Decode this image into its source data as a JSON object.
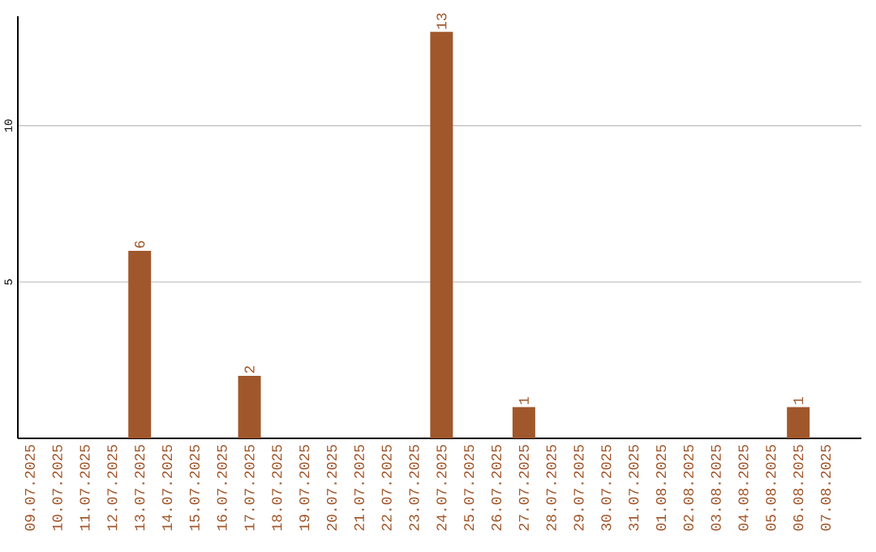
{
  "chart_data": {
    "type": "bar",
    "categories": [
      "09.07.2025",
      "10.07.2025",
      "11.07.2025",
      "12.07.2025",
      "13.07.2025",
      "14.07.2025",
      "15.07.2025",
      "16.07.2025",
      "17.07.2025",
      "18.07.2025",
      "19.07.2025",
      "20.07.2025",
      "21.07.2025",
      "22.07.2025",
      "23.07.2025",
      "24.07.2025",
      "25.07.2025",
      "26.07.2025",
      "27.07.2025",
      "28.07.2025",
      "29.07.2025",
      "30.07.2025",
      "31.07.2025",
      "01.08.2025",
      "02.08.2025",
      "03.08.2025",
      "04.08.2025",
      "05.08.2025",
      "06.08.2025",
      "07.08.2025"
    ],
    "values": [
      0,
      0,
      0,
      0,
      6,
      0,
      0,
      0,
      2,
      0,
      0,
      0,
      0,
      0,
      0,
      13,
      0,
      0,
      1,
      0,
      0,
      0,
      0,
      0,
      0,
      0,
      0,
      0,
      1,
      0
    ],
    "value_labels": [
      null,
      null,
      null,
      null,
      "6",
      null,
      null,
      null,
      "2",
      null,
      null,
      null,
      null,
      null,
      null,
      "13",
      null,
      null,
      "1",
      null,
      null,
      null,
      null,
      null,
      null,
      null,
      null,
      null,
      "1",
      null
    ],
    "color": "#a0572b",
    "ylim": [
      0,
      13.5
    ],
    "yticks": [
      5,
      10
    ],
    "grid": "y"
  }
}
